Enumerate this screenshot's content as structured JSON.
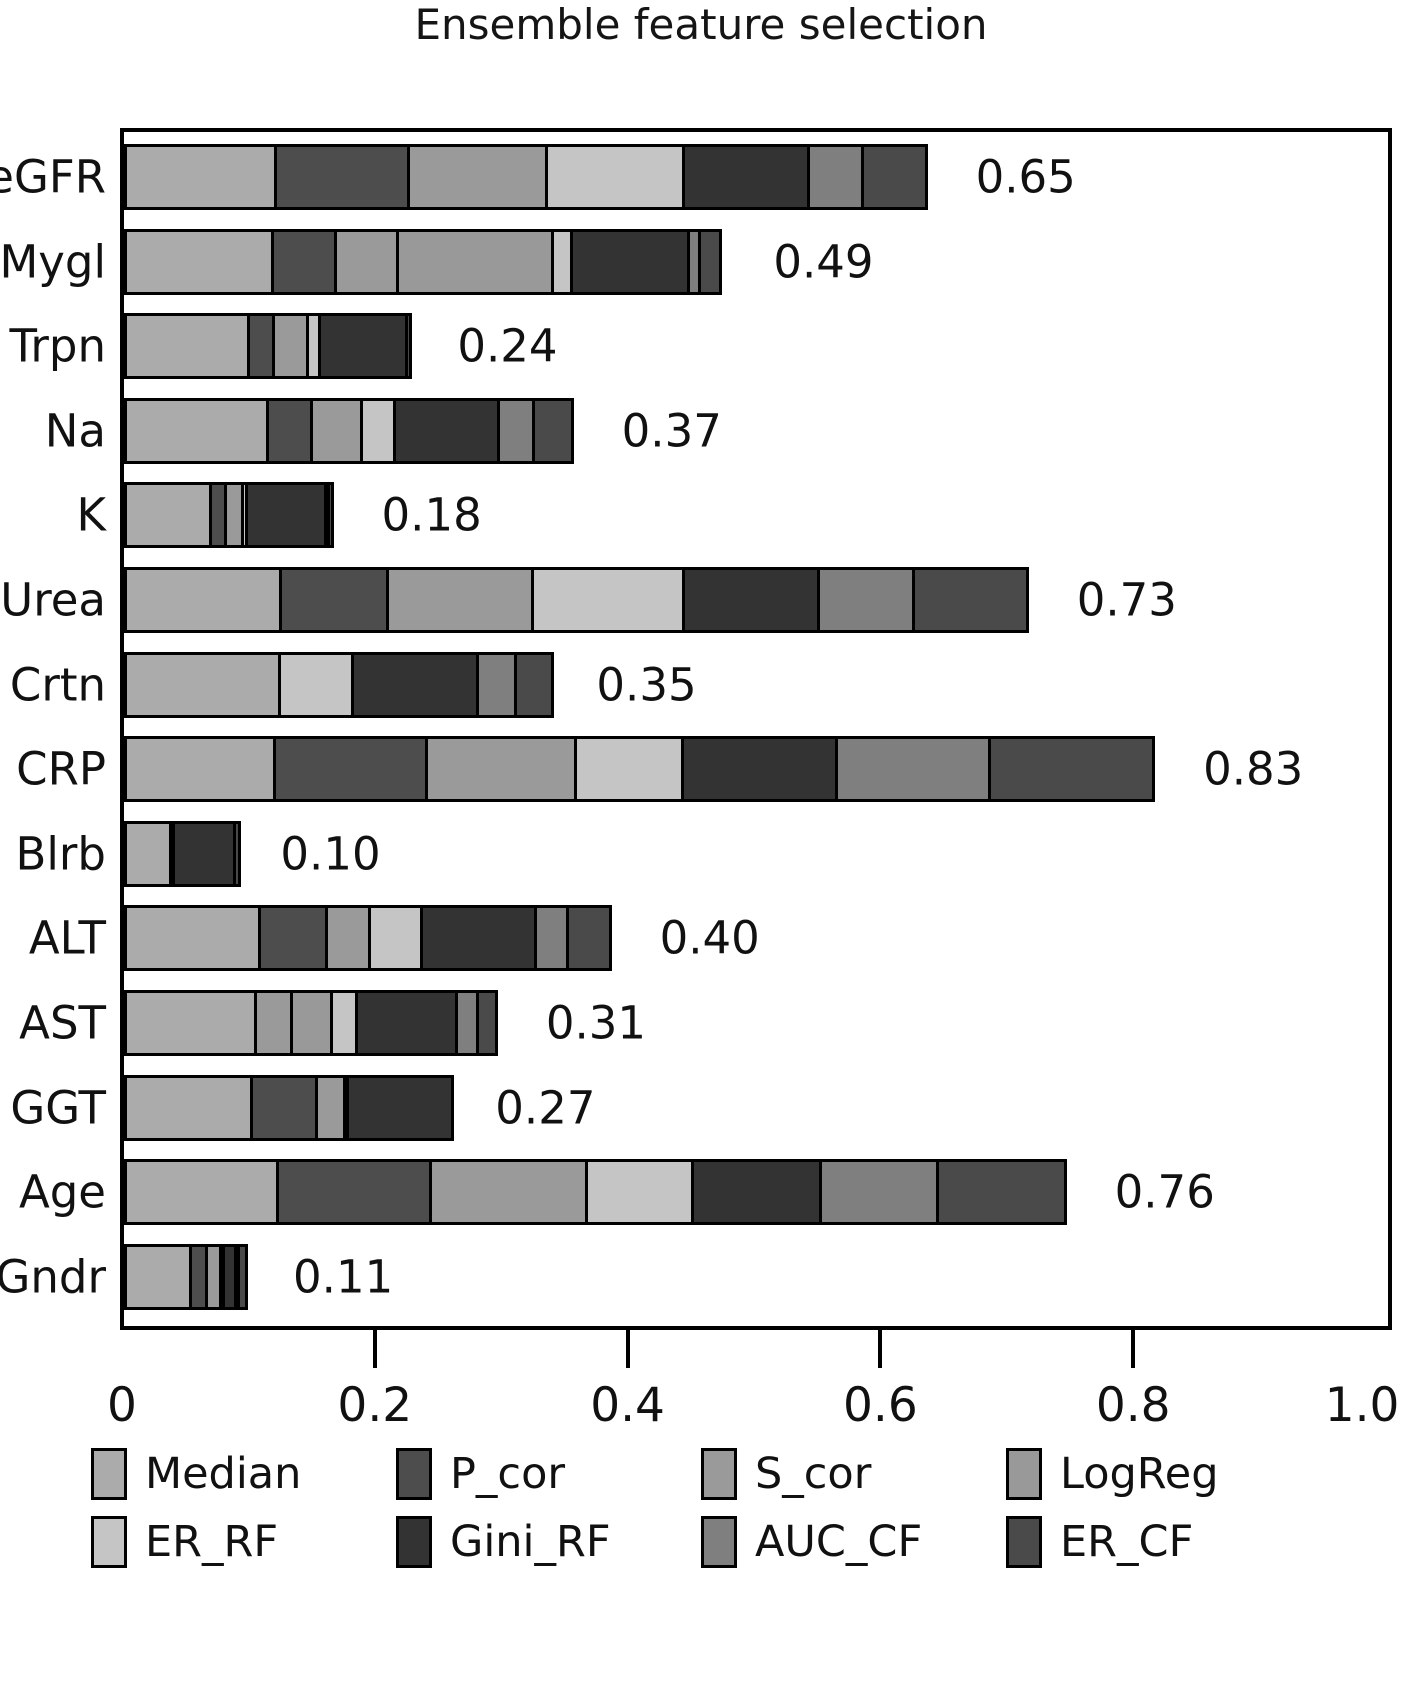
{
  "chart_data": {
    "type": "bar",
    "orientation": "horizontal",
    "stacked": true,
    "title": "Ensemble feature selection",
    "grid": false,
    "legend_position": "bottom",
    "xlim": [
      0,
      1.0
    ],
    "x_ticks": [
      "0",
      "0.2",
      "0.4",
      "0.6",
      "0.8",
      "1.0"
    ],
    "x_tick_values": [
      0,
      0.2,
      0.4,
      0.6,
      0.8,
      1.0
    ],
    "categories": [
      "eGFR",
      "Mygl",
      "Trpn",
      "Na",
      "K",
      "Urea",
      "Crtn",
      "CRP",
      "Blrb",
      "ALT",
      "AST",
      "GGT",
      "Age",
      "Gndr"
    ],
    "totals": [
      "0.65",
      "0.49",
      "0.24",
      "0.37",
      "0.18",
      "0.73",
      "0.35",
      "0.83",
      "0.10",
      "0.40",
      "0.31",
      "0.27",
      "0.76",
      "0.11"
    ],
    "total_values": [
      0.65,
      0.49,
      0.24,
      0.37,
      0.18,
      0.73,
      0.35,
      0.83,
      0.1,
      0.4,
      0.31,
      0.27,
      0.76,
      0.11
    ],
    "series": [
      {
        "name": "Median",
        "color": "#ababab",
        "values": [
          0.121,
          0.119,
          0.1,
          0.115,
          0.07,
          0.125,
          0.124,
          0.12,
          0.038,
          0.108,
          0.105,
          0.102,
          0.123,
          0.054
        ]
      },
      {
        "name": "P_cor",
        "color": "#4d4d4d",
        "values": [
          0.108,
          0.052,
          0.022,
          0.037,
          0.014,
          0.087,
          0.0,
          0.123,
          0.005,
          0.056,
          0.0,
          0.054,
          0.123,
          0.015
        ]
      },
      {
        "name": "S_cor",
        "color": "#9a9a9a",
        "values": [
          0.111,
          0.051,
          0.029,
          0.042,
          0.016,
          0.117,
          0.0,
          0.12,
          0.0,
          0.036,
          0.031,
          0.024,
          0.126,
          0.013
        ]
      },
      {
        "name": "LogReg",
        "color": "#999999",
        "values": [
          0.0,
          0.125,
          0.0,
          0.0,
          0.0,
          0.0,
          0.0,
          0.0,
          0.0,
          0.0,
          0.034,
          0.0,
          0.0,
          0.0
        ]
      },
      {
        "name": "ER_RF",
        "color": "#c5c5c5",
        "values": [
          0.111,
          0.018,
          0.012,
          0.028,
          0.005,
          0.122,
          0.06,
          0.087,
          0.0,
          0.044,
          0.022,
          0.004,
          0.086,
          0.003
        ]
      },
      {
        "name": "Gini_RF",
        "color": "#333333",
        "values": [
          0.101,
          0.095,
          0.071,
          0.085,
          0.065,
          0.109,
          0.102,
          0.124,
          0.05,
          0.092,
          0.082,
          0.086,
          0.104,
          0.012
        ]
      },
      {
        "name": "AUC_CF",
        "color": "#7f7f7f",
        "values": [
          0.045,
          0.011,
          0.0,
          0.03,
          0.004,
          0.078,
          0.032,
          0.124,
          0.0,
          0.028,
          0.019,
          0.0,
          0.095,
          0.004
        ]
      },
      {
        "name": "ER_CF",
        "color": "#4a4a4a",
        "values": [
          0.053,
          0.019,
          0.006,
          0.033,
          0.006,
          0.092,
          0.032,
          0.132,
          0.007,
          0.036,
          0.017,
          0.0,
          0.103,
          0.009
        ]
      }
    ],
    "legend_rows": [
      [
        "Median",
        "P_cor",
        "S_cor",
        "LogReg"
      ],
      [
        "ER_RF",
        "Gini_RF",
        "AUC_CF",
        "ER_CF"
      ]
    ]
  }
}
